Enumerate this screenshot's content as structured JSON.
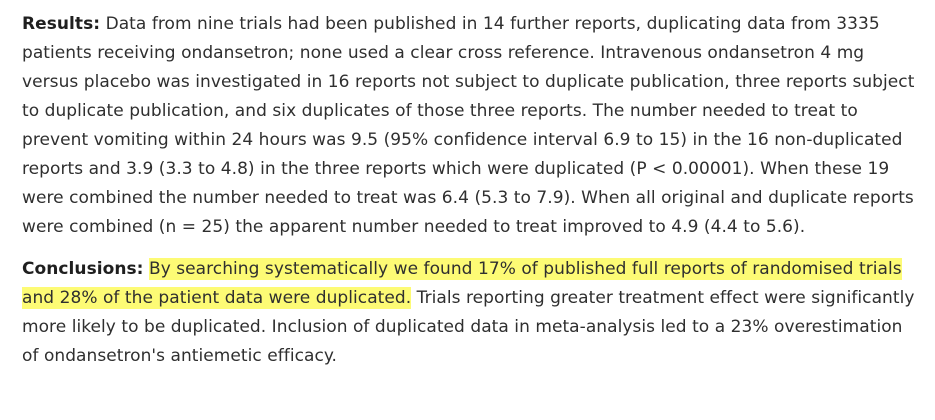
{
  "results": {
    "label": "Results:",
    "text": " Data from nine trials had been published in 14 further reports, duplicating data from 3335 patients receiving ondansetron; none used a clear cross reference. Intravenous ondansetron 4 mg versus placebo was investigated in 16 reports not subject to duplicate publication, three reports subject to duplicate publication, and six duplicates of those three reports. The number needed to treat to prevent vomiting within 24 hours was 9.5 (95% confidence interval 6.9 to 15) in the 16 non-duplicated reports and 3.9 (3.3 to 4.8) in the three reports which were duplicated (P < 0.00001). When these 19 were combined the number needed to treat was 6.4 (5.3 to 7.9). When all original and duplicate reports were combined (n = 25) the apparent number needed to treat improved to 4.9 (4.4 to 5.6)."
  },
  "conclusions": {
    "label": "Conclusions:",
    "highlighted": "By searching systematically we found 17% of published full reports of randomised trials and 28% of the patient data were duplicated.",
    "text": " Trials reporting greater treatment effect were significantly more likely to be duplicated. Inclusion of duplicated data in meta-analysis led to a 23% overestimation of ondansetron's antiemetic efficacy."
  },
  "colors": {
    "highlight": "#fdfb75",
    "text": "#2f2f2f"
  }
}
